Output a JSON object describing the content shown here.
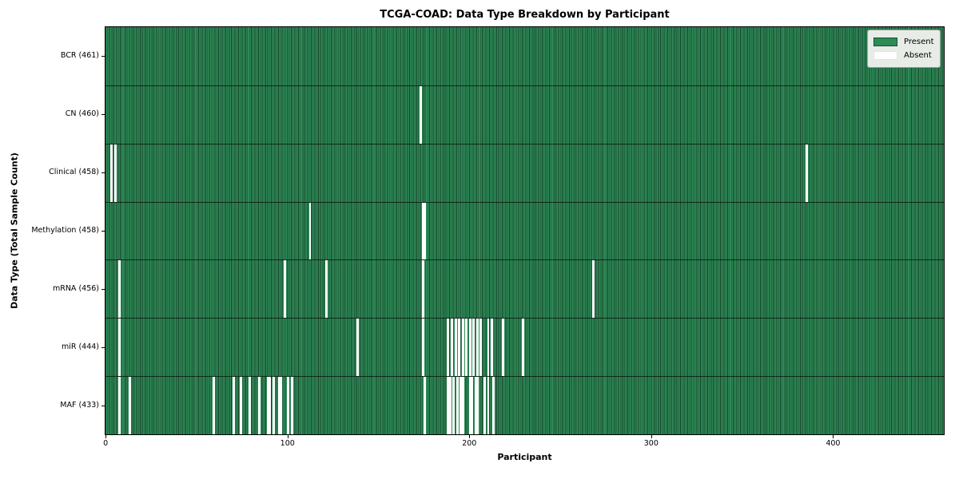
{
  "title": "TCGA-COAD: Data Type Breakdown by Participant",
  "colors": {
    "present": "#2e8b57",
    "present_edge": "#17502f",
    "absent": "#ffffff",
    "plot_border": "#000000",
    "legend_bg": "#e7ece7",
    "legend_border": "#9a9a9a"
  },
  "chart_data": {
    "type": "heatmap",
    "title": "TCGA-COAD: Data Type Breakdown by Participant",
    "xlabel": "Participant",
    "ylabel": "Data Type (Total Sample Count)",
    "legend_position": "upper right",
    "grid": false,
    "total_participants": 461,
    "xlim": [
      0,
      461
    ],
    "x_ticks": [
      0,
      100,
      200,
      300,
      400
    ],
    "legend_items": [
      {
        "label": "Present",
        "color": "#2e8b57"
      },
      {
        "label": "Absent",
        "color": "#ffffff"
      }
    ],
    "rows": [
      {
        "label": "BCR (461)",
        "name": "BCR",
        "present_count": 461,
        "absent_participants": []
      },
      {
        "label": "CN (460)",
        "name": "CN",
        "present_count": 460,
        "absent_participants": [
          173
        ]
      },
      {
        "label": "Clinical (458)",
        "name": "Clinical",
        "present_count": 458,
        "absent_participants": [
          3,
          5,
          385
        ]
      },
      {
        "label": "Methylation (458)",
        "name": "Methylation",
        "present_count": 458,
        "absent_participants": [
          112,
          174,
          175
        ]
      },
      {
        "label": "mRNA (456)",
        "name": "mRNA",
        "present_count": 456,
        "absent_participants": [
          7,
          98,
          121,
          174,
          268
        ]
      },
      {
        "label": "miR (444)",
        "name": "miR",
        "present_count": 444,
        "absent_participants": [
          7,
          138,
          174,
          188,
          190,
          192,
          194,
          196,
          198,
          200,
          202,
          204,
          206,
          210,
          212,
          218,
          229
        ]
      },
      {
        "label": "MAF (433)",
        "name": "MAF",
        "present_count": 433,
        "absent_participants": [
          7,
          13,
          59,
          70,
          74,
          79,
          84,
          89,
          90,
          92,
          95,
          96,
          100,
          102,
          175,
          188,
          189,
          191,
          193,
          195,
          196,
          200,
          201,
          203,
          204,
          208,
          210,
          213
        ]
      }
    ]
  }
}
